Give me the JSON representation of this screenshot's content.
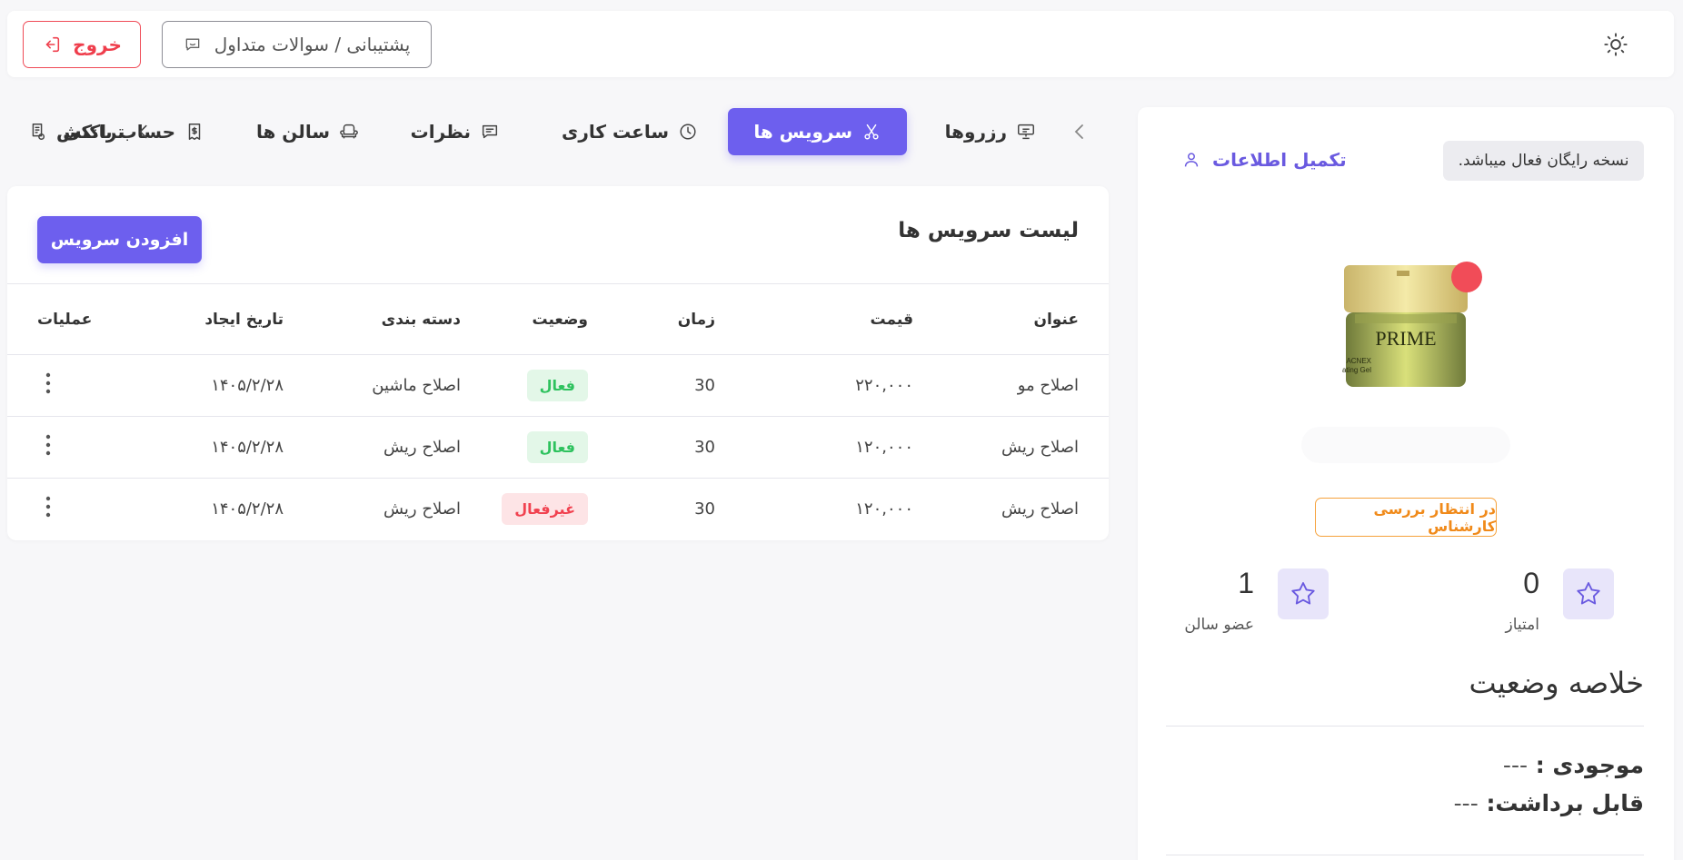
{
  "header": {
    "support_label": "پشتیبانی / سوالات متداول",
    "logout_label": "خروج"
  },
  "profile": {
    "free_version_notice": "نسخه رایگان فعال میباشد.",
    "complete_info_label": "تکمیل اطلاعات",
    "product_brand": "PRIME",
    "product_subtitle": "Ultra-Hydrating Gel",
    "product_line": "ACNEX",
    "status_badge": "در انتظار بررسی کارشناس",
    "stats": {
      "points_value": "0",
      "points_label": "امتیاز",
      "members_value": "1",
      "members_label": "عضو سالن"
    },
    "summary_title": "خلاصه وضعیت",
    "inventory_label": "موجودی : ",
    "inventory_value": "---",
    "withdrawable_label": "قابل برداشت: ",
    "withdrawable_value": "---"
  },
  "tabs": [
    {
      "label": "رزروها",
      "icon": "presentation-icon"
    },
    {
      "label": "سرویس ها",
      "icon": "scissors-icon",
      "active": true
    },
    {
      "label": "ساعت کاری",
      "icon": "clock-icon"
    },
    {
      "label": "نظرات",
      "icon": "comment-icon"
    },
    {
      "label": "سالن ها",
      "icon": "armchair-icon"
    },
    {
      "label": "حساب بانکی",
      "icon": "receipt-icon"
    },
    {
      "label": "تراکنش",
      "icon": "transaction-icon"
    }
  ],
  "services": {
    "title": "لیست سرویس ها",
    "add_label": "افزودن سرویس",
    "columns": [
      "عنوان",
      "قیمت",
      "زمان",
      "وضعیت",
      "دسته بندی",
      "تاریخ ایجاد",
      "عملیات"
    ],
    "rows": [
      {
        "title": "اصلاح مو",
        "price": "۲۲۰,۰۰۰",
        "time": "30",
        "status": "فعال",
        "status_kind": "active",
        "category": "اصلاح ماشین",
        "date": "۱۴۰۵/۲/۲۸"
      },
      {
        "title": "اصلاح ریش",
        "price": "۱۲۰,۰۰۰",
        "time": "30",
        "status": "فعال",
        "status_kind": "active",
        "category": "اصلاح ریش",
        "date": "۱۴۰۵/۲/۲۸"
      },
      {
        "title": "اصلاح ریش",
        "price": "۱۲۰,۰۰۰",
        "time": "30",
        "status": "غیرفعال",
        "status_kind": "inactive",
        "category": "اصلاح ریش",
        "date": "۱۴۰۵/۲/۲۸"
      }
    ]
  },
  "colors": {
    "accent": "#6d5fee",
    "danger": "#ef3e4c",
    "success": "#2ec25e",
    "warning": "#f08a1a"
  }
}
